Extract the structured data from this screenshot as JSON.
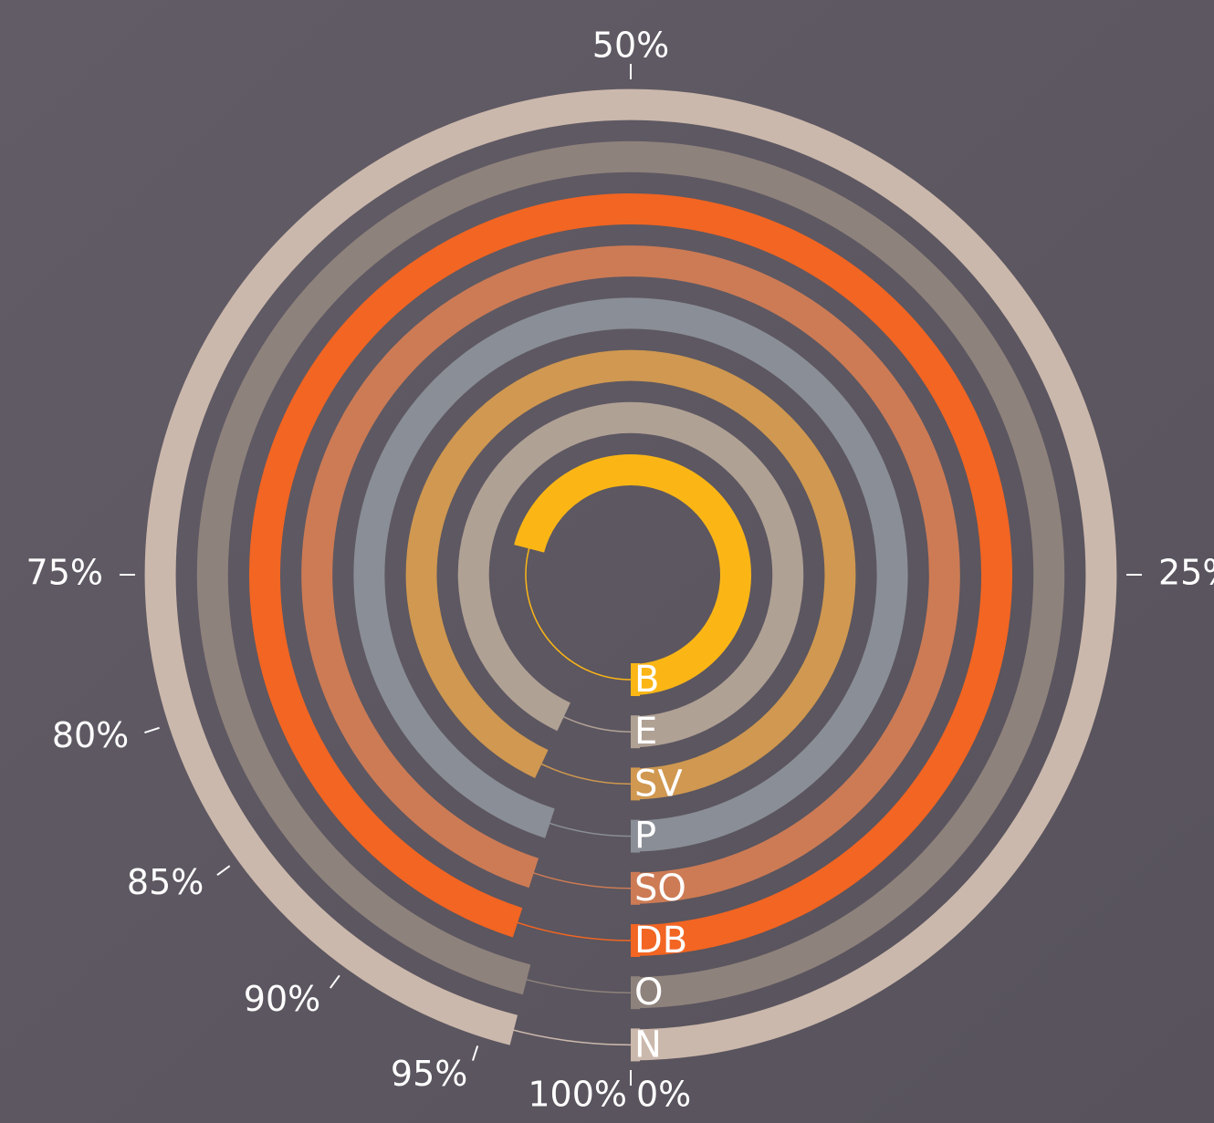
{
  "chart_data": {
    "type": "radial_bar",
    "categories": [
      "B",
      "E",
      "SV",
      "P",
      "SO",
      "DB",
      "O",
      "N"
    ],
    "values": [
      71,
      93,
      93,
      95,
      95,
      95,
      96,
      96
    ],
    "colors": [
      "#fbb616",
      "#b0a195",
      "#d09850",
      "#8a8e96",
      "#cd7b55",
      "#f26522",
      "#8e827c",
      "#cbb8ac"
    ],
    "xlim": [
      0,
      100
    ],
    "xticks": [
      {
        "value": 0,
        "label": "0%"
      },
      {
        "value": 25,
        "label": "25%"
      },
      {
        "value": 50,
        "label": "50%"
      },
      {
        "value": 75,
        "label": "75%"
      },
      {
        "value": 80,
        "label": "80%"
      },
      {
        "value": 85,
        "label": "85%"
      },
      {
        "value": 90,
        "label": "90%"
      },
      {
        "value": 95,
        "label": "95%"
      },
      {
        "value": 100,
        "label": "100%"
      }
    ]
  }
}
